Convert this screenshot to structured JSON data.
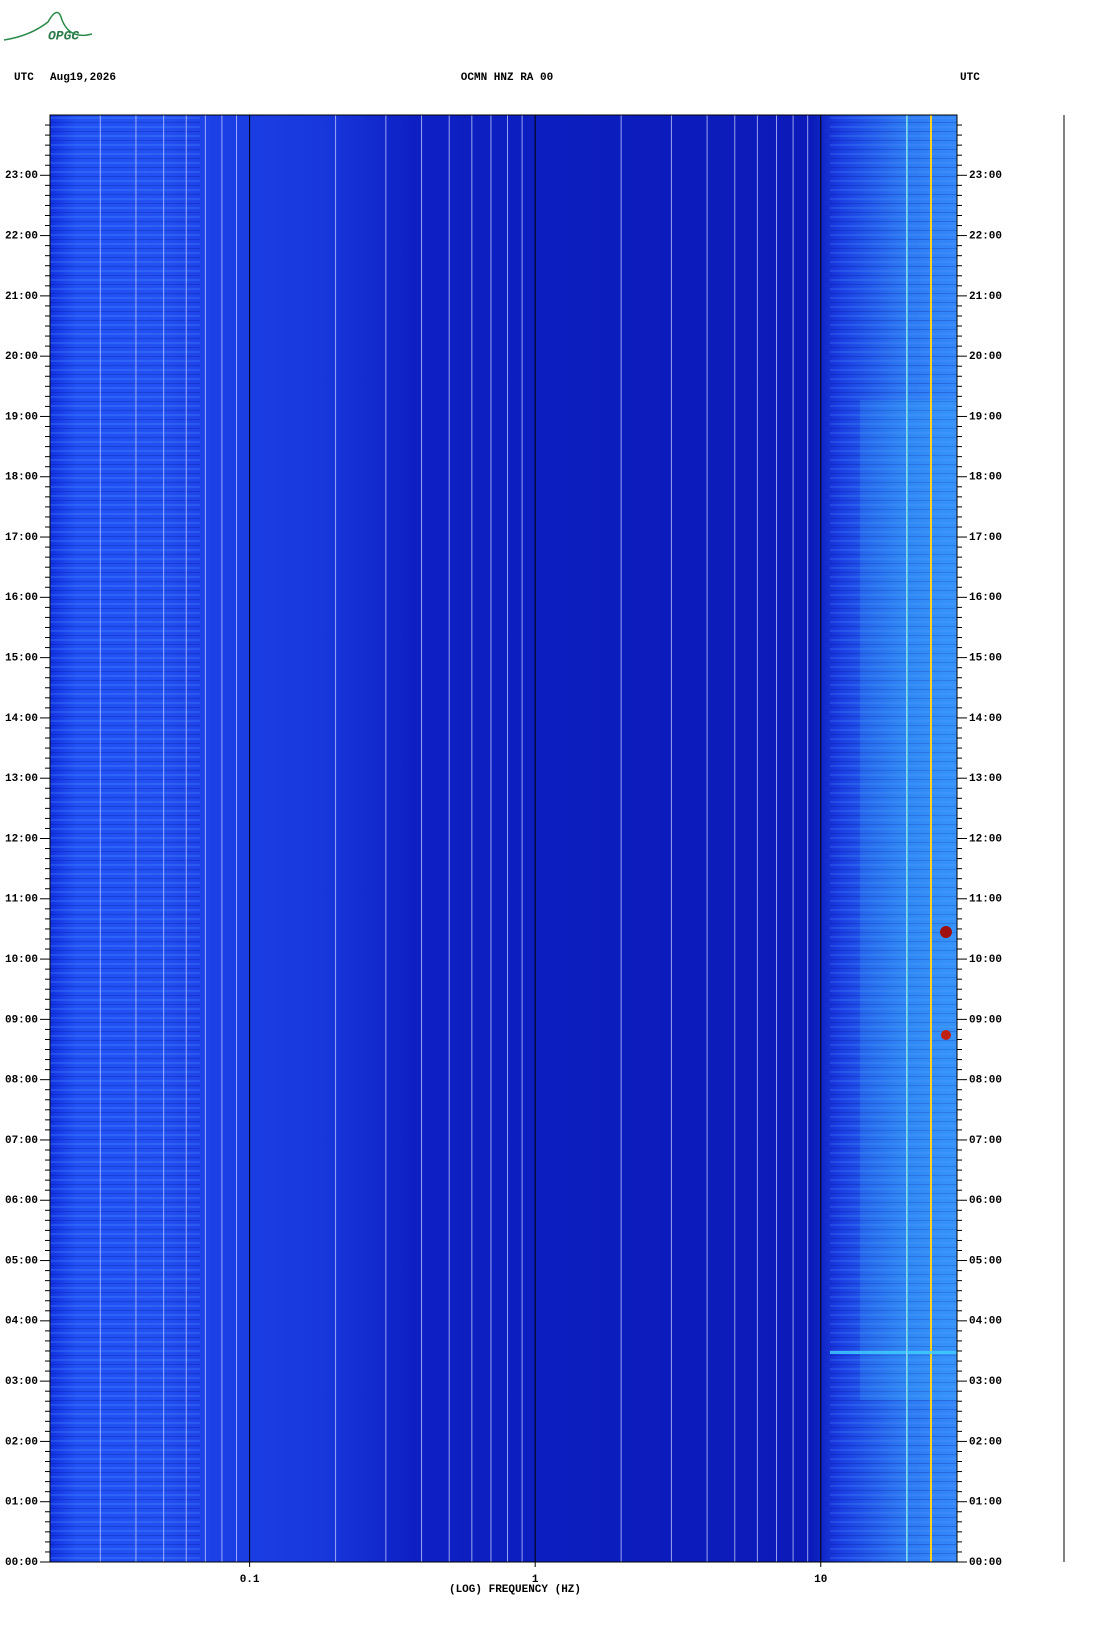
{
  "logo": "OPGC",
  "chart_data": {
    "type": "spectrogram",
    "header_left": "UTC",
    "date": "Aug19,2026",
    "title": "OCMN HNZ RA 00",
    "header_right": "UTC",
    "xlabel": "(LOG) FREQUENCY (HZ)",
    "xscale": "log",
    "xlim": [
      0.02,
      30
    ],
    "xticks": [
      0.1,
      1,
      10
    ],
    "xgrid": [
      0.03,
      0.04,
      0.05,
      0.06,
      0.07,
      0.08,
      0.09,
      0.2,
      0.3,
      0.4,
      0.5,
      0.6,
      0.7,
      0.8,
      0.9,
      2,
      3,
      4,
      5,
      6,
      7,
      8,
      9,
      20
    ],
    "ylim": [
      0,
      24
    ],
    "yticks": [
      {
        "value": 0,
        "label": "00:00"
      },
      {
        "value": 1,
        "label": "01:00"
      },
      {
        "value": 2,
        "label": "02:00"
      },
      {
        "value": 3,
        "label": "03:00"
      },
      {
        "value": 4,
        "label": "04:00"
      },
      {
        "value": 5,
        "label": "05:00"
      },
      {
        "value": 6,
        "label": "06:00"
      },
      {
        "value": 7,
        "label": "07:00"
      },
      {
        "value": 8,
        "label": "08:00"
      },
      {
        "value": 9,
        "label": "09:00"
      },
      {
        "value": 10,
        "label": "10:00"
      },
      {
        "value": 11,
        "label": "11:00"
      },
      {
        "value": 12,
        "label": "12:00"
      },
      {
        "value": 13,
        "label": "13:00"
      },
      {
        "value": 14,
        "label": "14:00"
      },
      {
        "value": 15,
        "label": "15:00"
      },
      {
        "value": 16,
        "label": "16:00"
      },
      {
        "value": 17,
        "label": "17:00"
      },
      {
        "value": 18,
        "label": "18:00"
      },
      {
        "value": 19,
        "label": "19:00"
      },
      {
        "value": 20,
        "label": "20:00"
      },
      {
        "value": 21,
        "label": "21:00"
      },
      {
        "value": 22,
        "label": "22:00"
      },
      {
        "value": 23,
        "label": "23:00"
      }
    ]
  }
}
